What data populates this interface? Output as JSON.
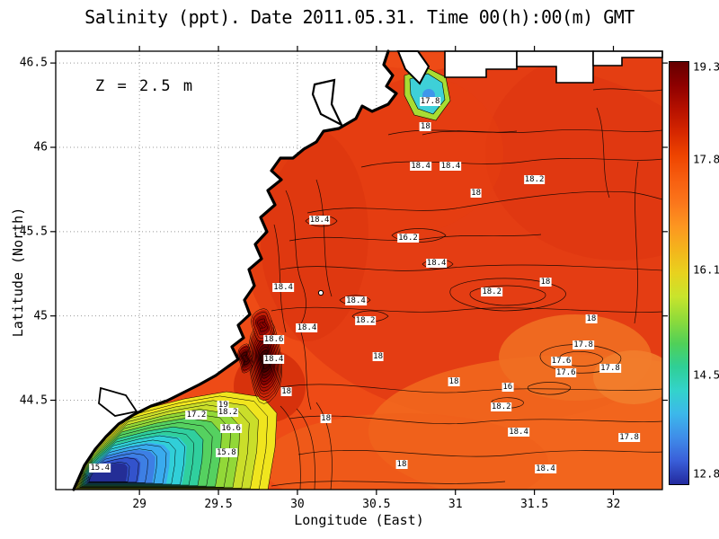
{
  "chart_data": {
    "type": "heatmap",
    "title": "Salinity (ppt). Date 2011.05.31. Time 00(h):00(m) GMT",
    "annotation": "Z = 2.5 m",
    "xlabel": "Longitude (East)",
    "ylabel": "Latitude (North)",
    "xlim": [
      28.47,
      32.31
    ],
    "ylim": [
      43.97,
      46.57
    ],
    "xtick_values": [
      29,
      29.5,
      30,
      30.5,
      31,
      31.5,
      32
    ],
    "xtick_labels": [
      "29",
      "29.5",
      "30",
      "30.5",
      "31",
      "31.5",
      "32"
    ],
    "ytick_values": [
      44.5,
      45,
      45.5,
      46,
      46.5
    ],
    "ytick_labels": [
      "44.5",
      "45",
      "45.5",
      "46",
      "46.5"
    ],
    "grid": true,
    "legend_position": "right-colorbar",
    "colorbar": {
      "min": 12.8,
      "max": 19.3,
      "tick_values": [
        19.3,
        17.8,
        16.1,
        14.5,
        12.8
      ],
      "tick_labels": [
        "19.3",
        "17.8",
        "16.1",
        "14.5",
        "12.8"
      ],
      "colors_top_to_bottom": [
        "#650000",
        "#8e0000",
        "#b51000",
        "#d62700",
        "#ee4400",
        "#f75e10",
        "#fb761b",
        "#fd9620",
        "#f4b41c",
        "#e8d21e",
        "#c8e42c",
        "#8edb3a",
        "#50d058",
        "#2fcf96",
        "#33d3cb",
        "#3cb8ea",
        "#3f8de9",
        "#3a5fd9",
        "#232a9e"
      ]
    },
    "contour_labels": [
      {
        "lon": 30.84,
        "lat": 46.27,
        "value": "17.8"
      },
      {
        "lon": 30.81,
        "lat": 46.12,
        "value": "18"
      },
      {
        "lon": 30.78,
        "lat": 45.89,
        "value": "18.4"
      },
      {
        "lon": 30.97,
        "lat": 45.89,
        "value": "18.4"
      },
      {
        "lon": 31.13,
        "lat": 45.73,
        "value": "18"
      },
      {
        "lon": 31.5,
        "lat": 45.81,
        "value": "18.2"
      },
      {
        "lon": 30.14,
        "lat": 45.57,
        "value": "18.4"
      },
      {
        "lon": 30.7,
        "lat": 45.46,
        "value": "16.2"
      },
      {
        "lon": 30.88,
        "lat": 45.31,
        "value": "18.4"
      },
      {
        "lon": 29.91,
        "lat": 45.17,
        "value": "18.4"
      },
      {
        "lon": 31.23,
        "lat": 45.14,
        "value": "18.2"
      },
      {
        "lon": 31.57,
        "lat": 45.2,
        "value": "18"
      },
      {
        "lon": 30.37,
        "lat": 45.09,
        "value": "18.4"
      },
      {
        "lon": 30.43,
        "lat": 44.97,
        "value": "18.2"
      },
      {
        "lon": 30.06,
        "lat": 44.93,
        "value": "18.4"
      },
      {
        "lon": 31.86,
        "lat": 44.98,
        "value": "18"
      },
      {
        "lon": 29.85,
        "lat": 44.86,
        "value": "18.6"
      },
      {
        "lon": 29.85,
        "lat": 44.74,
        "value": "18.4"
      },
      {
        "lon": 30.51,
        "lat": 44.76,
        "value": "18"
      },
      {
        "lon": 31.81,
        "lat": 44.83,
        "value": "17.8"
      },
      {
        "lon": 31.67,
        "lat": 44.73,
        "value": "17.6"
      },
      {
        "lon": 31.7,
        "lat": 44.66,
        "value": "17.6"
      },
      {
        "lon": 31.98,
        "lat": 44.69,
        "value": "17.8"
      },
      {
        "lon": 30.99,
        "lat": 44.61,
        "value": "18"
      },
      {
        "lon": 31.33,
        "lat": 44.58,
        "value": "16"
      },
      {
        "lon": 31.29,
        "lat": 44.46,
        "value": "18.2"
      },
      {
        "lon": 29.93,
        "lat": 44.55,
        "value": "18"
      },
      {
        "lon": 30.18,
        "lat": 44.39,
        "value": "18"
      },
      {
        "lon": 31.4,
        "lat": 44.31,
        "value": "18.4"
      },
      {
        "lon": 32.1,
        "lat": 44.28,
        "value": "17.8"
      },
      {
        "lon": 30.66,
        "lat": 44.12,
        "value": "18"
      },
      {
        "lon": 31.57,
        "lat": 44.09,
        "value": "18.4"
      },
      {
        "lon": 29.36,
        "lat": 44.41,
        "value": "17.2"
      },
      {
        "lon": 29.53,
        "lat": 44.47,
        "value": "19"
      },
      {
        "lon": 29.56,
        "lat": 44.43,
        "value": "18.2"
      },
      {
        "lon": 29.58,
        "lat": 44.33,
        "value": "16.6"
      },
      {
        "lon": 29.55,
        "lat": 44.19,
        "value": "15.8"
      },
      {
        "lon": 28.75,
        "lat": 44.1,
        "value": "15.4"
      }
    ]
  }
}
